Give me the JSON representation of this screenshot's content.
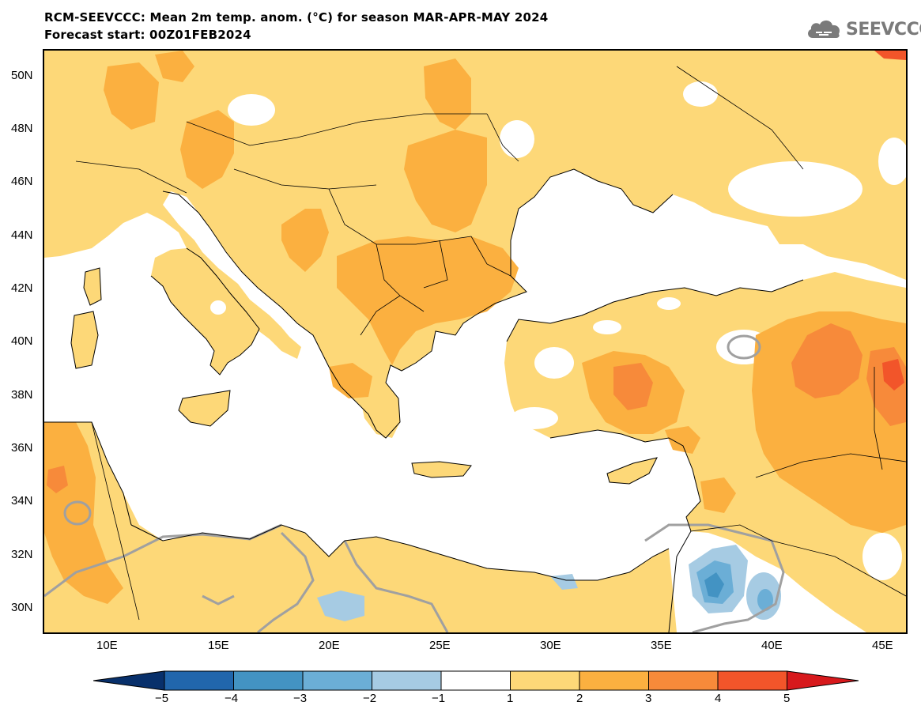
{
  "title": {
    "line1": "RCM-SEEVCCC: Mean 2m temp. anom. (°C) for season MAR-APR-MAY 2024",
    "line2": "Forecast start: 00Z01FEB2024"
  },
  "logo": {
    "text": "SEEVCCC",
    "icon": "cloud-icon"
  },
  "map": {
    "lat_labels": [
      "50N",
      "48N",
      "46N",
      "44N",
      "42N",
      "40N",
      "38N",
      "36N",
      "34N",
      "32N",
      "30N"
    ],
    "lon_labels": [
      "10E",
      "15E",
      "20E",
      "25E",
      "30E",
      "35E",
      "40E",
      "45E"
    ],
    "lat_range": [
      29,
      51
    ],
    "lon_range": [
      7,
      46
    ],
    "contour_label": "0"
  },
  "colorbar": {
    "ticks": [
      "−5",
      "−4",
      "−3",
      "−2",
      "−1",
      "1",
      "2",
      "3",
      "4",
      "5"
    ],
    "colors": [
      "#08306b",
      "#2166ac",
      "#4393c3",
      "#6baed6",
      "#a6cbe3",
      "#ffffff",
      "#fdd878",
      "#fbb040",
      "#f78a3a",
      "#f2552a",
      "#d7191c"
    ]
  },
  "palette": {
    "sea": "#ffffff",
    "anom_1_2": "#fdd878",
    "anom_2_3": "#fbb040",
    "anom_3_4": "#f78a3a",
    "anom_4_5": "#f2552a",
    "neg_1_2": "#a6cbe3",
    "neg_2_3": "#6baed6",
    "neg_3_4": "#4393c3"
  }
}
